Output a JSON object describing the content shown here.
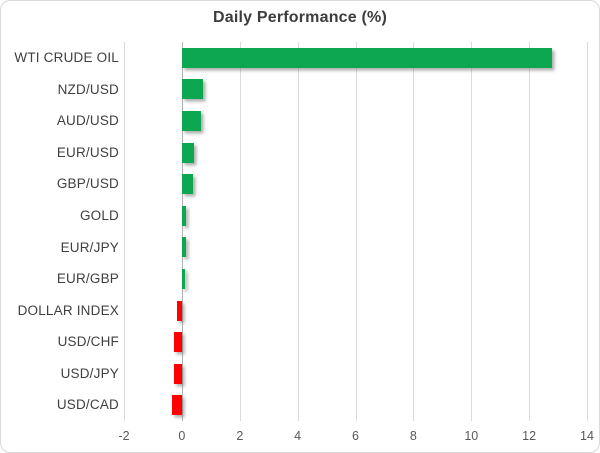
{
  "chart_data": {
    "type": "bar",
    "orientation": "horizontal",
    "title": "Daily Performance (%)",
    "categories": [
      "WTI CRUDE OIL",
      "NZD/USD",
      "AUD/USD",
      "EUR/USD",
      "GBP/USD",
      "GOLD",
      "EUR/JPY",
      "EUR/GBP",
      "DOLLAR INDEX",
      "USD/CHF",
      "USD/JPY",
      "USD/CAD"
    ],
    "values": [
      12.8,
      0.72,
      0.67,
      0.42,
      0.38,
      0.13,
      0.13,
      0.1,
      -0.17,
      -0.27,
      -0.27,
      -0.35
    ],
    "xlabel": "",
    "ylabel": "",
    "xlim": [
      -2,
      14
    ],
    "xticks": [
      -2,
      0,
      2,
      4,
      6,
      8,
      10,
      12,
      14
    ],
    "grid": true,
    "legend": "none",
    "colors": {
      "positive_bar": "#0ca750",
      "negative_bar": "#ff0000",
      "title_text": "#3d3d3d",
      "category_text": "#404040",
      "tick_text": "#595959",
      "gridline": "#dadada",
      "zero_axis_line": "#b3b3b3",
      "frame_border": "#d9d9d9",
      "background": "#ffffff"
    }
  }
}
